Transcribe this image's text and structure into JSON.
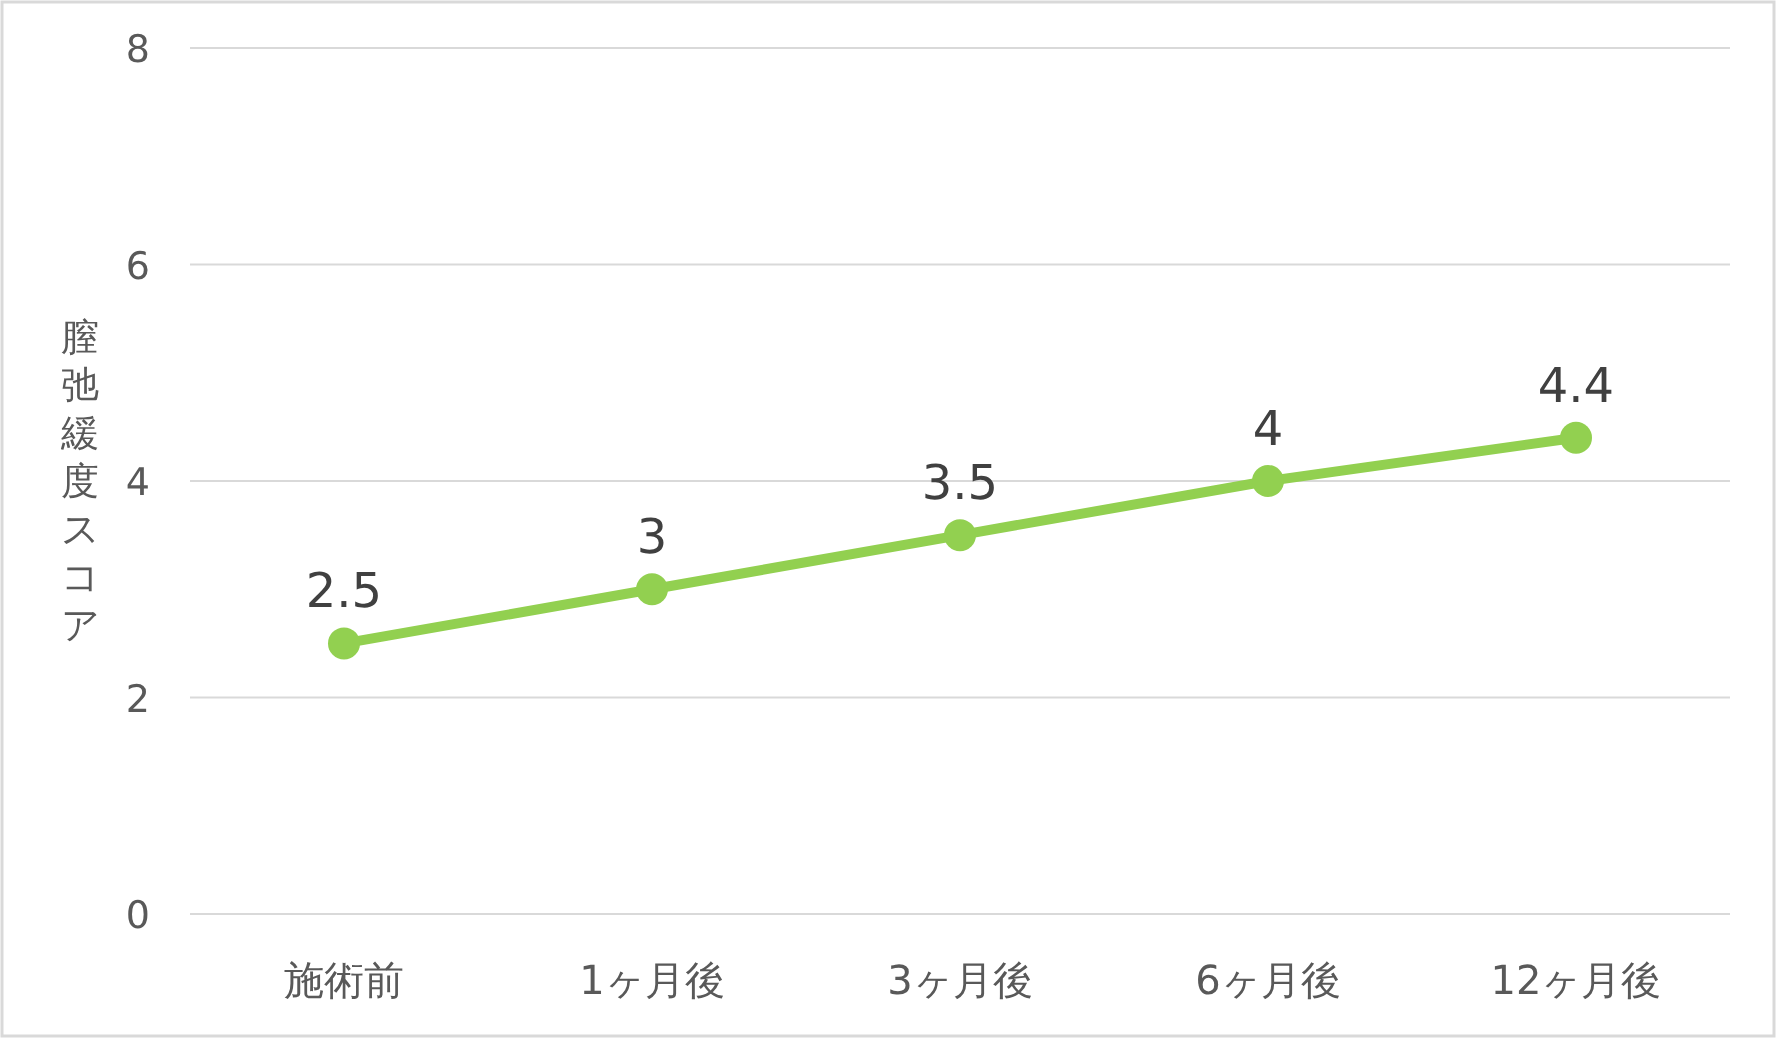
{
  "chart_data": {
    "type": "line",
    "ylabel": "膣弛緩度スコア",
    "categories": [
      "施術前",
      "1ヶ月後",
      "3ヶ月後",
      "6ヶ月後",
      "12ヶ月後"
    ],
    "series": [
      {
        "color": "#92d050",
        "values": [
          2.5,
          3,
          3.5,
          4,
          4.4
        ]
      }
    ],
    "ylim": [
      0,
      8
    ],
    "yticks": [
      0,
      2,
      4,
      6,
      8
    ],
    "grid": "y",
    "marker": "circle",
    "line_style": "solid",
    "data_labels": true
  }
}
